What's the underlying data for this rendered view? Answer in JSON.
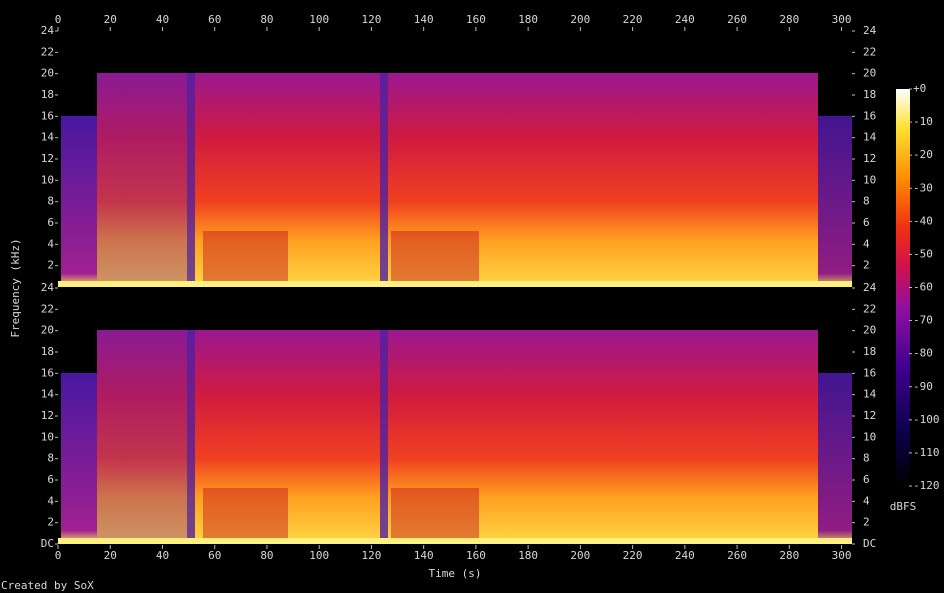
{
  "chart_data": {
    "type": "spectrogram",
    "xlabel": "Time (s)",
    "ylabel": "Frequency (kHz)",
    "footer": "Created by SoX",
    "xlim": [
      0,
      304
    ],
    "xticks": [
      0,
      20,
      40,
      60,
      80,
      100,
      120,
      140,
      160,
      180,
      200,
      220,
      240,
      260,
      280,
      300
    ],
    "ylim": [
      0,
      24
    ],
    "yticks": [
      {
        "value": 0,
        "label": "DC"
      },
      2,
      4,
      6,
      8,
      10,
      12,
      14,
      16,
      18,
      20,
      22,
      24
    ],
    "colorbar": {
      "label": "dBFS",
      "lim": [
        -120,
        0
      ],
      "ticks": [
        {
          "value": 0,
          "label": "+0"
        },
        -10,
        -20,
        -30,
        -40,
        -50,
        -60,
        -70,
        -80,
        -90,
        -100,
        -110,
        -120
      ]
    }
  }
}
